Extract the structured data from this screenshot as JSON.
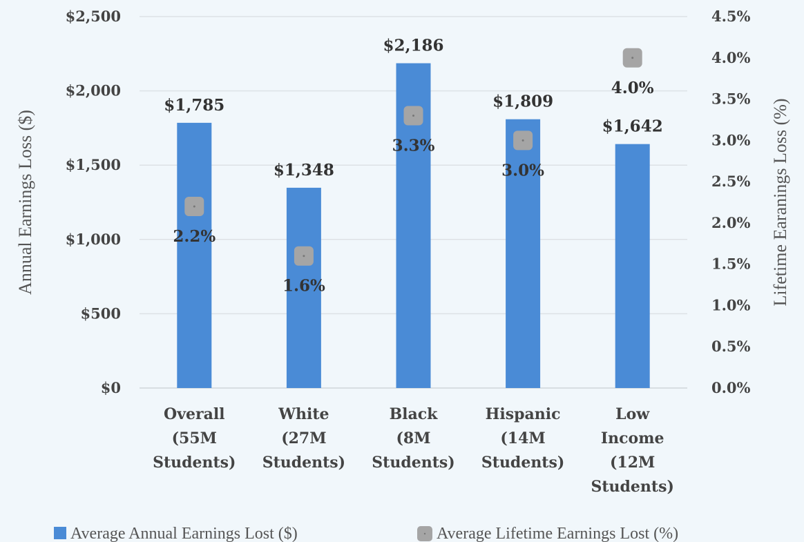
{
  "chart_data": {
    "type": "bar",
    "categories": [
      [
        "Overall",
        "(55M",
        "Students)"
      ],
      [
        "White",
        "(27M",
        "Students)"
      ],
      [
        "Black",
        "(8M",
        "Students)"
      ],
      [
        "Hispanic",
        "(14M",
        "Students)"
      ],
      [
        "Low",
        "Income",
        "(12M",
        "Students)"
      ]
    ],
    "series": [
      {
        "name": "Average Annual Earnings Lost ($)",
        "type": "bar",
        "axis": "left",
        "color": "#4a8bd6",
        "values": [
          1785,
          1348,
          2186,
          1809,
          1642
        ],
        "labels": [
          "$1,785",
          "$1,348",
          "$2,186",
          "$1,809",
          "$1,642"
        ]
      },
      {
        "name": "Average Lifetime Earnings Lost (%)",
        "type": "scatter",
        "axis": "right",
        "color": "#a5a5a5",
        "values": [
          2.2,
          1.6,
          3.3,
          3.0,
          4.0
        ],
        "labels": [
          "2.2%",
          "1.6%",
          "3.3%",
          "3.0%",
          "4.0%"
        ]
      }
    ],
    "ylabel": "Annual Earnings Loss ($)",
    "y2label": "Lifetime Earanings Loss (%)",
    "ylim": [
      0,
      2500
    ],
    "y2lim": [
      0,
      4.5
    ],
    "yticks": [
      "$0",
      "$500",
      "$1,000",
      "$1,500",
      "$2,000",
      "$2,500"
    ],
    "y2ticks": [
      "0.0%",
      "0.5%",
      "1.0%",
      "1.5%",
      "2.0%",
      "2.5%",
      "3.0%",
      "3.5%",
      "4.0%",
      "4.5%"
    ],
    "grid": true,
    "legend_position": "bottom"
  }
}
